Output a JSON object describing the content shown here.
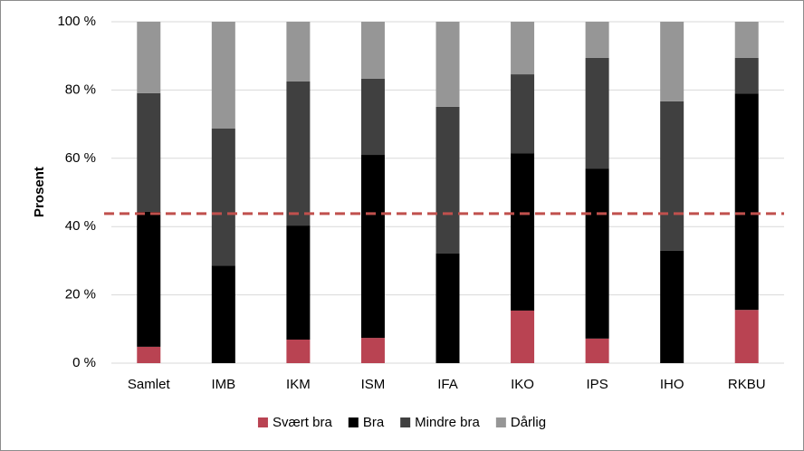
{
  "chart_data": {
    "type": "stacked_bar_percent",
    "y_label": "Prosent",
    "categories": [
      "Samlet",
      "IMB",
      "IKM",
      "ISM",
      "IFA",
      "IKO",
      "IPS",
      "IHO",
      "RKBU"
    ],
    "series": [
      {
        "name": "Svært bra",
        "color": "#b94352",
        "values": [
          4.8,
          0,
          6.9,
          7.4,
          0,
          15.4,
          7.2,
          0,
          15.6
        ]
      },
      {
        "name": "Bra",
        "color": "#000000",
        "values": [
          39.5,
          28.6,
          33.4,
          53.6,
          32.1,
          46.1,
          49.8,
          32.9,
          63.4
        ]
      },
      {
        "name": "Mindre bra",
        "color": "#404040",
        "values": [
          34.8,
          40.1,
          42.2,
          22.3,
          43.0,
          23.1,
          32.4,
          43.8,
          10.4
        ]
      },
      {
        "name": "Dårlig",
        "color": "#969696",
        "values": [
          20.9,
          31.3,
          17.5,
          16.7,
          24.9,
          15.4,
          10.6,
          23.3,
          10.6
        ]
      }
    ],
    "reference_line": 43.8,
    "reference_color": "#c0504d",
    "ylim": [
      0,
      100
    ],
    "yticks": [
      {
        "value": 0,
        "label": "0 %"
      },
      {
        "value": 20,
        "label": "20 %"
      },
      {
        "value": 40,
        "label": "40 %"
      },
      {
        "value": 60,
        "label": "60 %"
      },
      {
        "value": 80,
        "label": "80 %"
      },
      {
        "value": 100,
        "label": "100 %"
      }
    ],
    "grid": true,
    "legend": "bottom"
  }
}
